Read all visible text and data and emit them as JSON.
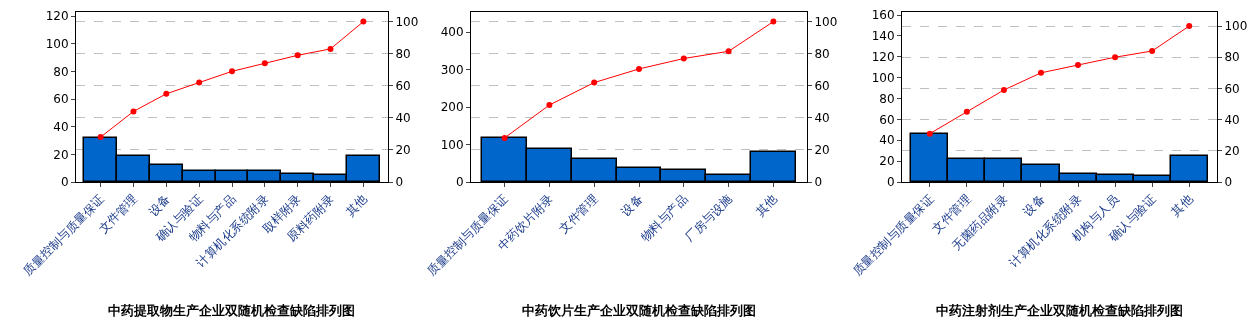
{
  "chart_data": [
    {
      "type": "bar",
      "title": "中药提取物生产企业双随机检查缺陷排列图",
      "categories": [
        "质量控制与质量保证",
        "文件管理",
        "设备",
        "确认与验证",
        "物料与产品",
        "计算机化系统附录",
        "取样附录",
        "原料药附录",
        "其他"
      ],
      "series": [
        {
          "color": "#0066cc",
          "values": [
            32,
            19,
            12,
            8,
            8,
            8,
            6,
            5,
            19
          ]
        },
        {
          "type": "line",
          "axis": "y2",
          "color": "#ff0000",
          "marker": "circle",
          "values": [
            28,
            44,
            55,
            62,
            69,
            74,
            79,
            83,
            100
          ]
        }
      ],
      "ylim": [
        0,
        123
      ],
      "yticks": [
        0,
        20,
        40,
        60,
        80,
        100,
        120
      ],
      "y2lim": [
        0,
        106
      ],
      "y2ticks": [
        0,
        20,
        40,
        60,
        80,
        100
      ],
      "grid": true
    },
    {
      "type": "bar",
      "title": "中药饮片生产企业双随机检查缺陷排列图",
      "categories": [
        "质量控制与质量保证",
        "中药饮片附录",
        "文件管理",
        "设备",
        "物料与产品",
        "厂房与设施",
        "其他"
      ],
      "series": [
        {
          "color": "#0066cc",
          "values": [
            117,
            88,
            62,
            38,
            31,
            20,
            80
          ]
        },
        {
          "type": "line",
          "axis": "y2",
          "color": "#ff0000",
          "marker": "circle",
          "values": [
            27.5,
            48,
            62,
            70.5,
            77,
            81.5,
            100
          ]
        }
      ],
      "ylim": [
        0,
        454
      ],
      "yticks": [
        0,
        100,
        200,
        300,
        400
      ],
      "y2lim": [
        0,
        106
      ],
      "y2ticks": [
        0,
        20,
        40,
        60,
        80,
        100
      ],
      "grid": true
    },
    {
      "type": "bar",
      "title": "中药注射剂生产企业双随机检查缺陷排列图",
      "categories": [
        "质量控制与质量保证",
        "文件管理",
        "无菌药品附录",
        "设备",
        "计算机化系统附录",
        "机构与人员",
        "确认与验证",
        "其他"
      ],
      "series": [
        {
          "color": "#0066cc",
          "values": [
            46,
            22,
            22,
            16,
            8,
            7,
            6,
            25
          ]
        },
        {
          "type": "line",
          "axis": "y2",
          "color": "#ff0000",
          "marker": "circle",
          "values": [
            31,
            45,
            59,
            70,
            75,
            80,
            84,
            100
          ]
        }
      ],
      "ylim": [
        0,
        163
      ],
      "yticks": [
        0,
        20,
        40,
        60,
        80,
        100,
        120,
        140,
        160
      ],
      "y2lim": [
        0,
        109
      ],
      "y2ticks": [
        0,
        20,
        40,
        60,
        80,
        100
      ],
      "grid": true
    }
  ]
}
